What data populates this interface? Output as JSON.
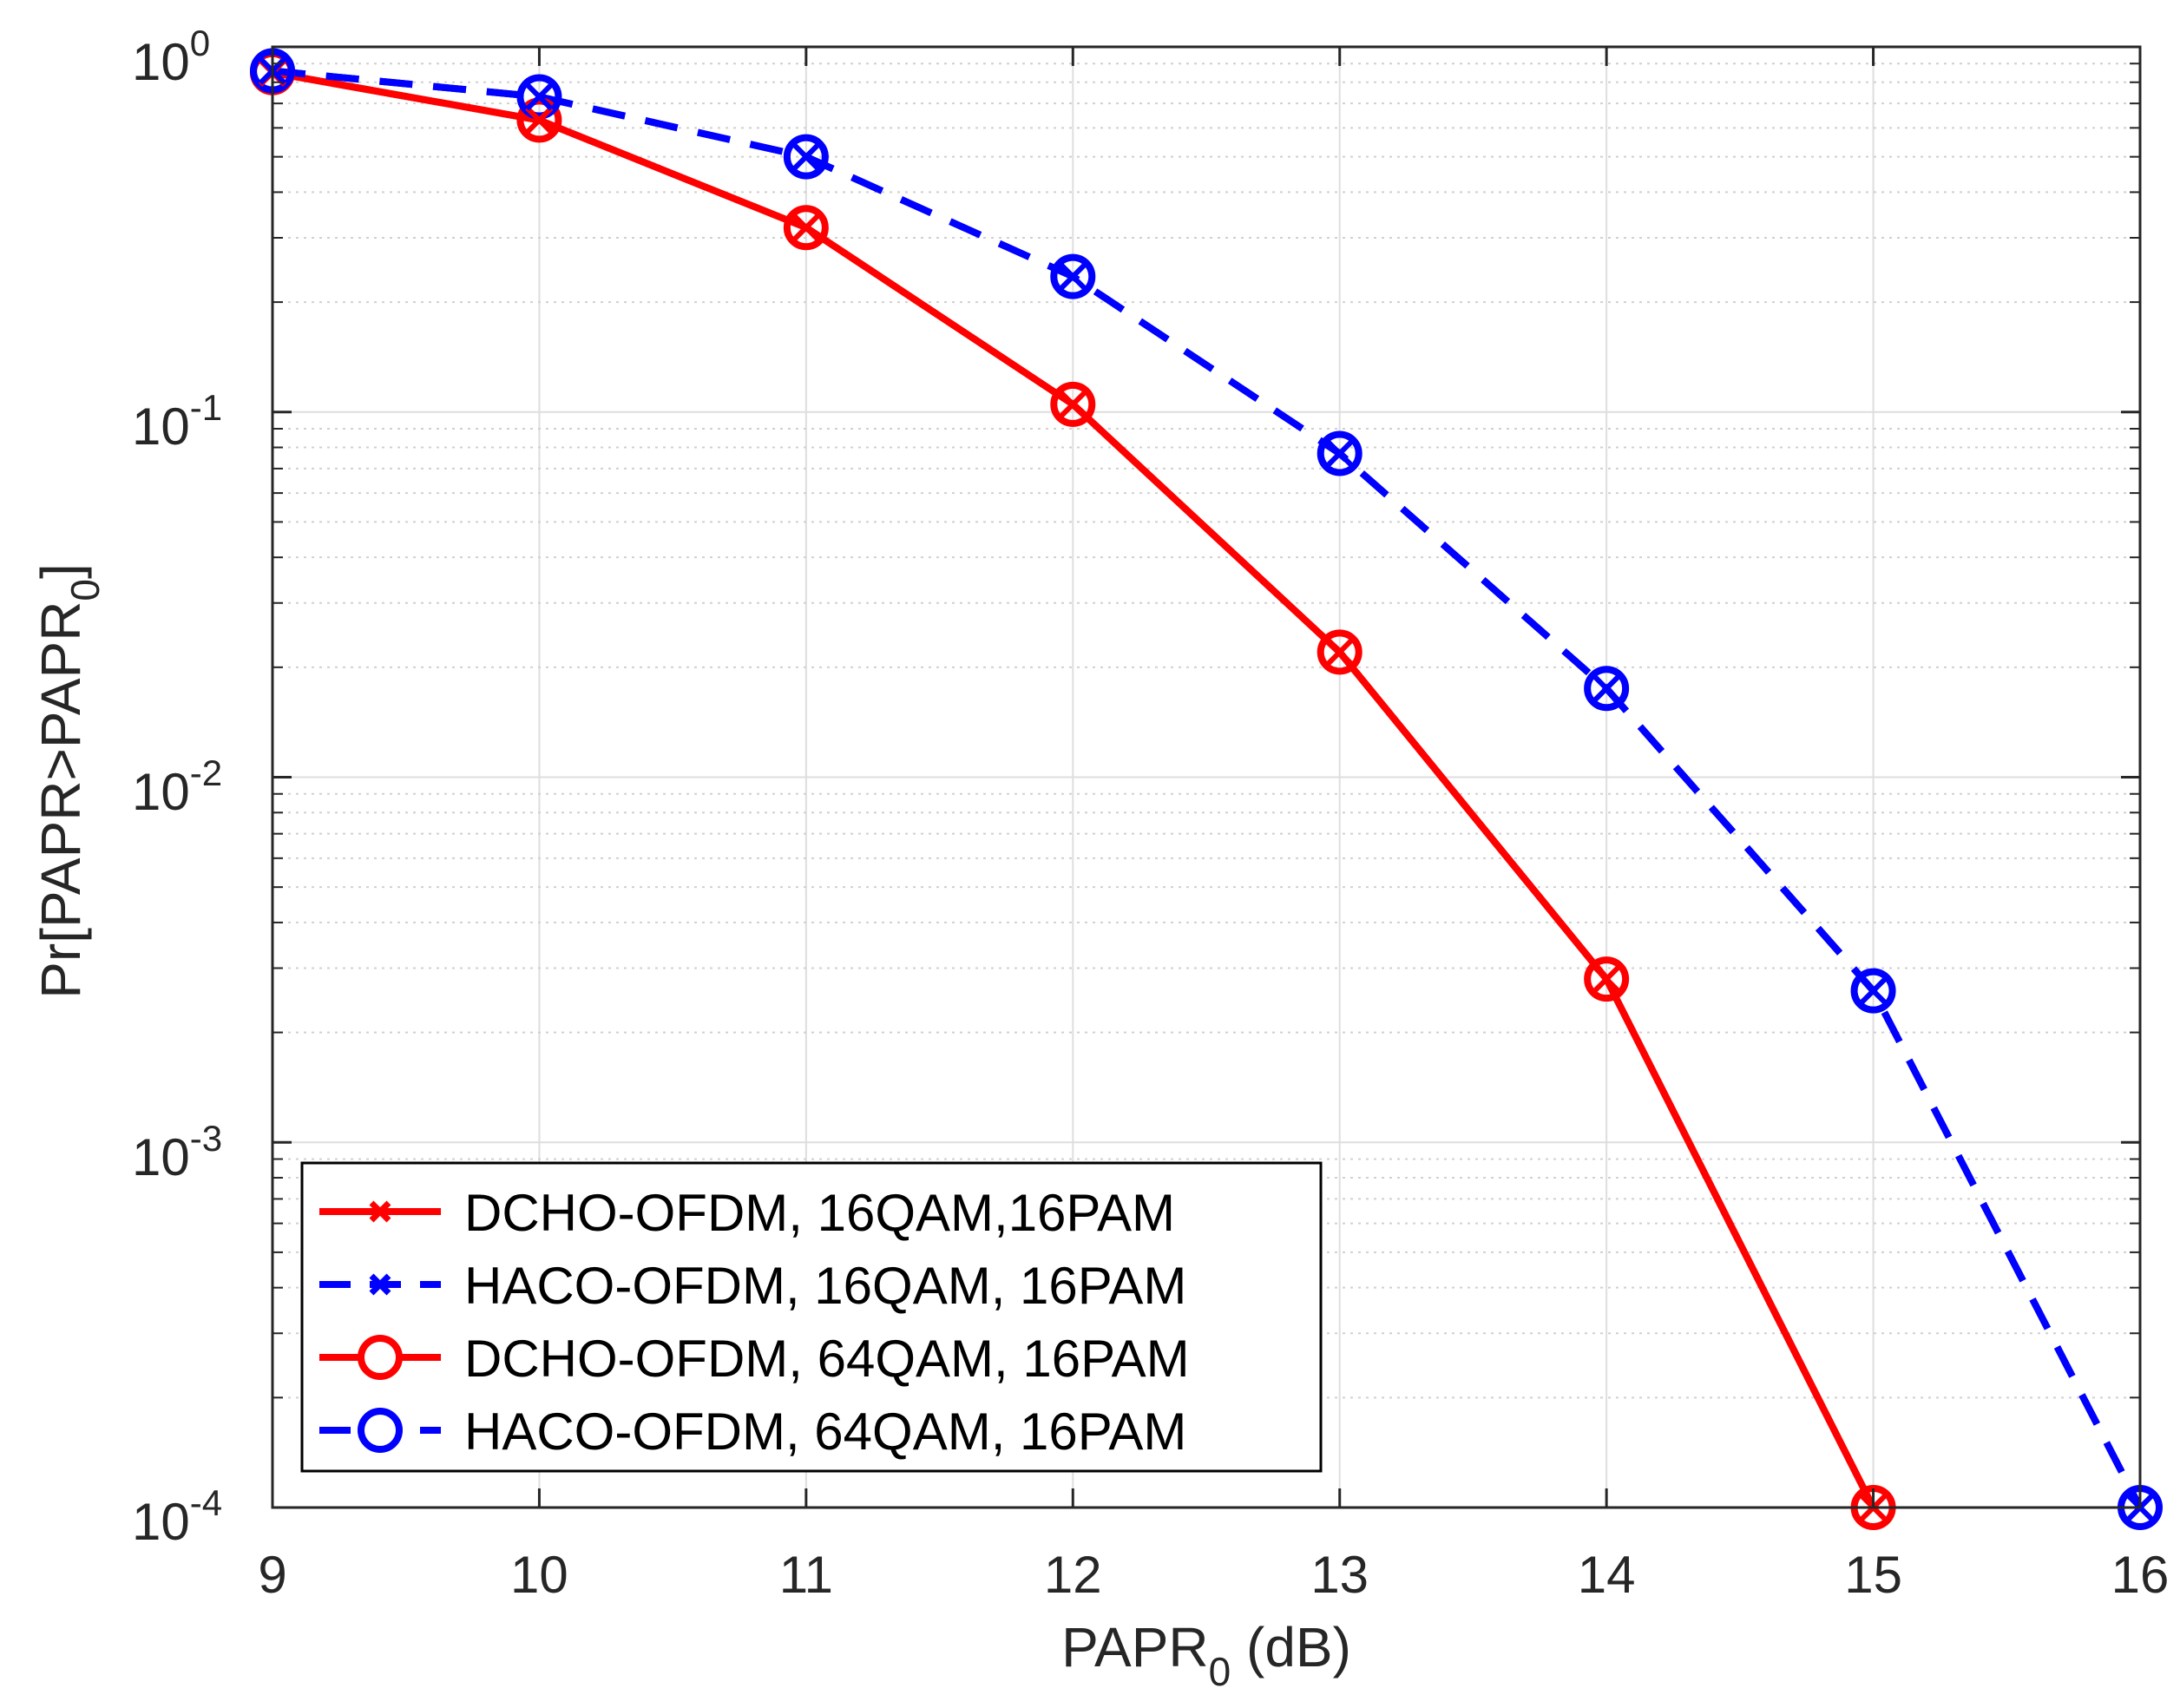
{
  "chart_data": {
    "type": "line",
    "title": "",
    "xlabel": {
      "base": "PAPR",
      "sub": "0",
      "suffix": " (dB)"
    },
    "ylabel": {
      "prefix": "Pr[PAPR>PAPR",
      "sub": "0",
      "suffix": "]"
    },
    "x_scale": "linear",
    "y_scale": "log",
    "xlim": [
      9,
      16
    ],
    "ylim": [
      0.0001,
      1
    ],
    "x_ticks": [
      "9",
      "10",
      "11",
      "12",
      "13",
      "14",
      "15",
      "16"
    ],
    "y_ticks": [
      {
        "base": "10",
        "exp": "0"
      },
      {
        "base": "10",
        "exp": "-1"
      },
      {
        "base": "10",
        "exp": "-2"
      },
      {
        "base": "10",
        "exp": "-3"
      },
      {
        "base": "10",
        "exp": "-4"
      }
    ],
    "grid": true,
    "legend_position": "bottom-left",
    "series": [
      {
        "name": "DCHO-OFDM, 16QAM,16PAM",
        "color": "#ff0000",
        "line_style": "solid",
        "marker": "x",
        "x": [
          9,
          10,
          11,
          12,
          13,
          14,
          15
        ],
        "y": [
          0.85,
          0.63,
          0.32,
          0.105,
          0.022,
          0.0028,
          0.0001
        ]
      },
      {
        "name": "HACO-OFDM, 16QAM, 16PAM",
        "color": "#0000ff",
        "line_style": "dashed",
        "marker": "x",
        "x": [
          9,
          10,
          11,
          12,
          13,
          14,
          15,
          16
        ],
        "y": [
          0.86,
          0.73,
          0.5,
          0.235,
          0.077,
          0.0175,
          0.0026,
          0.0001
        ]
      },
      {
        "name": "DCHO-OFDM, 64QAM, 16PAM",
        "color": "#ff0000",
        "line_style": "solid",
        "marker": "o",
        "x": [
          9,
          10,
          11,
          12,
          13,
          14,
          15
        ],
        "y": [
          0.85,
          0.63,
          0.32,
          0.105,
          0.022,
          0.0028,
          0.0001
        ]
      },
      {
        "name": "HACO-OFDM, 64QAM, 16PAM",
        "color": "#0000ff",
        "line_style": "dashed",
        "marker": "o",
        "x": [
          9,
          10,
          11,
          12,
          13,
          14,
          15,
          16
        ],
        "y": [
          0.86,
          0.73,
          0.5,
          0.235,
          0.077,
          0.0175,
          0.0026,
          0.0001
        ]
      }
    ]
  }
}
